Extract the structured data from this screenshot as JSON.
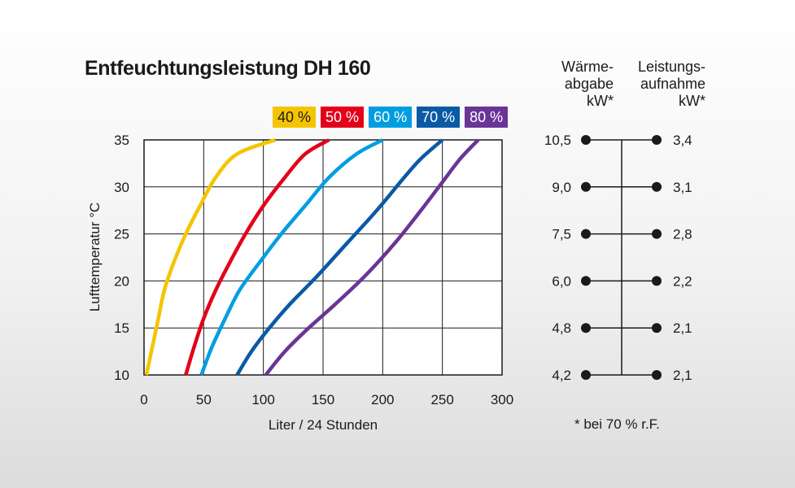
{
  "chart_data": {
    "type": "line",
    "title": "Entfeuchtungsleistung DH 160",
    "xlabel": "Liter / 24 Stunden",
    "ylabel": "Lufttemperatur °C",
    "xlim": [
      0,
      300
    ],
    "ylim": [
      10,
      35
    ],
    "x_ticks": [
      "0",
      "50",
      "100",
      "150",
      "200",
      "250",
      "300"
    ],
    "y_ticks": [
      "10",
      "15",
      "20",
      "25",
      "30",
      "35"
    ],
    "grid": true,
    "legend_position": "top-right",
    "series": [
      {
        "name": "40 %",
        "color": "#f5c400",
        "points": [
          [
            2,
            10
          ],
          [
            7,
            13
          ],
          [
            12,
            16
          ],
          [
            17,
            19
          ],
          [
            25,
            22
          ],
          [
            35,
            25
          ],
          [
            47,
            28
          ],
          [
            60,
            31
          ],
          [
            78,
            33.5
          ],
          [
            110,
            35
          ]
        ]
      },
      {
        "name": "50 %",
        "color": "#e3001b",
        "points": [
          [
            35,
            10
          ],
          [
            42,
            13
          ],
          [
            50,
            16
          ],
          [
            60,
            19
          ],
          [
            72,
            22
          ],
          [
            85,
            25
          ],
          [
            100,
            28
          ],
          [
            118,
            31
          ],
          [
            135,
            33.5
          ],
          [
            155,
            35
          ]
        ]
      },
      {
        "name": "60 %",
        "color": "#009ee0",
        "points": [
          [
            48,
            10
          ],
          [
            57,
            13
          ],
          [
            68,
            16
          ],
          [
            80,
            19
          ],
          [
            97,
            22
          ],
          [
            115,
            25
          ],
          [
            135,
            28
          ],
          [
            155,
            31
          ],
          [
            178,
            33.5
          ],
          [
            200,
            35
          ]
        ]
      },
      {
        "name": "70 %",
        "color": "#0a5aa5",
        "points": [
          [
            78,
            10
          ],
          [
            90,
            12.5
          ],
          [
            105,
            15
          ],
          [
            122,
            17.5
          ],
          [
            145,
            20.5
          ],
          [
            170,
            24
          ],
          [
            195,
            27.5
          ],
          [
            218,
            31
          ],
          [
            232,
            33
          ],
          [
            250,
            35
          ]
        ]
      },
      {
        "name": "80 %",
        "color": "#6a3596",
        "points": [
          [
            102,
            10
          ],
          [
            118,
            12.5
          ],
          [
            138,
            15
          ],
          [
            160,
            17.5
          ],
          [
            185,
            20.5
          ],
          [
            210,
            24
          ],
          [
            232,
            27.5
          ],
          [
            250,
            30.5
          ],
          [
            265,
            33
          ],
          [
            280,
            35
          ]
        ]
      }
    ]
  },
  "side_scale": {
    "left_header": [
      "Wärme-",
      "abgabe",
      "kW*"
    ],
    "right_header": [
      "Leistungs-",
      "aufnahme",
      "kW*"
    ],
    "rows": [
      {
        "temp": 35,
        "waerme": "10,5",
        "leistung": "3,4"
      },
      {
        "temp": 30,
        "waerme": "9,0",
        "leistung": "3,1"
      },
      {
        "temp": 25,
        "waerme": "7,5",
        "leistung": "2,8"
      },
      {
        "temp": 20,
        "waerme": "6,0",
        "leistung": "2,2"
      },
      {
        "temp": 15,
        "waerme": "4,8",
        "leistung": "2,1"
      },
      {
        "temp": 10,
        "waerme": "4,2",
        "leistung": "2,1"
      }
    ],
    "footnote": "* bei 70 % r.F."
  }
}
